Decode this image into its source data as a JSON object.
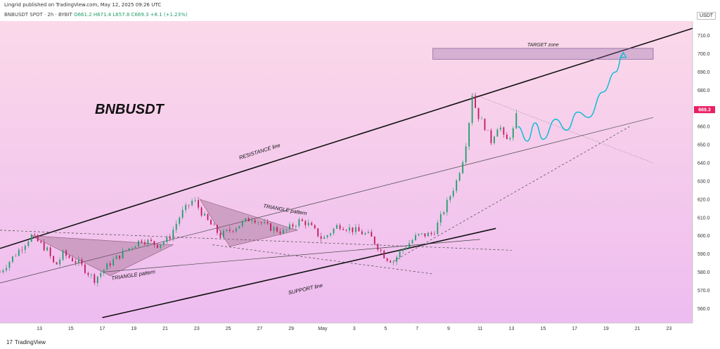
{
  "header": {
    "published": "Lingrid published on TradingView.com, May 12, 2025 09:26 UTC",
    "symbol_line": "BNBUSDT SPOT · 2h · BYBIT",
    "ohlc": "O661.2  H671.4  L657.8  C669.3  +8.1 (+1.23%)"
  },
  "footer": {
    "logo_mark": "17",
    "brand": "TradingView"
  },
  "colors": {
    "up": "#1f9d6a",
    "down": "#c2185b",
    "accent": "#00bcd4",
    "price_tag": "#e91e63"
  },
  "chart_data": {
    "type": "candlestick",
    "title": "BNBUSDT",
    "unit_label": "USDT",
    "last_price": "669.3",
    "y_ticks": [
      560,
      570,
      580,
      590,
      600,
      610,
      620,
      630,
      640,
      650,
      660,
      670,
      680,
      690,
      700,
      710
    ],
    "ylim": [
      552,
      718
    ],
    "x_ticks": [
      "13",
      "15",
      "17",
      "19",
      "21",
      "23",
      "25",
      "27",
      "29",
      "May",
      "3",
      "5",
      "7",
      "9",
      "11",
      "13",
      "15",
      "17",
      "19",
      "21",
      "23"
    ],
    "x_tick_days": [
      -18,
      -16,
      -14,
      -12,
      -10,
      -8,
      -6,
      -4,
      -2,
      0,
      2,
      4,
      6,
      8,
      10,
      12,
      14,
      16,
      18,
      20,
      22
    ],
    "xlim": [
      -20.5,
      23.5
    ],
    "price_path": [
      [
        -20.5,
        580
      ],
      [
        -19.5,
        590
      ],
      [
        -18.5,
        600
      ],
      [
        -17.5,
        592
      ],
      [
        -17,
        583
      ],
      [
        -16.5,
        590
      ],
      [
        -15.5,
        585
      ],
      [
        -14.5,
        576
      ],
      [
        -13.5,
        585
      ],
      [
        -12.5,
        592
      ],
      [
        -11.5,
        598
      ],
      [
        -10.5,
        595
      ],
      [
        -9.8,
        598
      ],
      [
        -9,
        612
      ],
      [
        -8.2,
        620
      ],
      [
        -7.5,
        610
      ],
      [
        -6.5,
        600
      ],
      [
        -5.5,
        605
      ],
      [
        -4.5,
        610
      ],
      [
        -3.5,
        605
      ],
      [
        -2.5,
        602
      ],
      [
        -1.5,
        608
      ],
      [
        -1,
        607
      ],
      [
        0,
        598
      ],
      [
        1,
        606
      ],
      [
        2,
        603
      ],
      [
        3,
        600
      ],
      [
        4,
        588
      ],
      [
        4.5,
        586
      ],
      [
        5,
        592
      ],
      [
        6,
        600
      ],
      [
        7,
        601
      ],
      [
        7.5,
        610
      ],
      [
        8.5,
        630
      ],
      [
        9,
        645
      ],
      [
        9.3,
        663
      ],
      [
        9.5,
        678
      ],
      [
        9.8,
        667
      ],
      [
        10.3,
        660
      ],
      [
        10.7,
        652
      ],
      [
        11.2,
        662
      ],
      [
        11.6,
        651
      ],
      [
        12.1,
        658
      ],
      [
        12.4,
        669.3
      ]
    ],
    "projection": [
      [
        12.4,
        660
      ],
      [
        13,
        652
      ],
      [
        13.5,
        662
      ],
      [
        14,
        653
      ],
      [
        14.8,
        664
      ],
      [
        15.5,
        658
      ],
      [
        16.2,
        668
      ],
      [
        16.9,
        665
      ],
      [
        17.8,
        679
      ],
      [
        18.6,
        690
      ],
      [
        19.1,
        700
      ]
    ],
    "target_zone": {
      "label": "TARGET zone",
      "x": [
        7,
        21
      ],
      "y": [
        697,
        703
      ]
    },
    "triangles": [
      {
        "label": "TRIANGLE pattern",
        "points": [
          [
            -18.5,
            600
          ],
          [
            -13.5,
            578
          ],
          [
            -9.5,
            595
          ]
        ]
      },
      {
        "label": "TRIANGLE pattern",
        "points": [
          [
            -7.8,
            620
          ],
          [
            -5.9,
            594
          ],
          [
            -1.6,
            603
          ]
        ]
      }
    ],
    "lines": [
      {
        "label": "RESISTANCE line",
        "from": [
          -20.5,
          593
        ],
        "to": [
          23.5,
          714
        ],
        "style": "solid-thick"
      },
      {
        "label": "",
        "from": [
          -20.5,
          574
        ],
        "to": [
          21,
          665
        ],
        "style": "solid-thin"
      },
      {
        "label": "",
        "from": [
          -20.5,
          603
        ],
        "to": [
          12,
          592
        ],
        "style": "dashed-thin"
      },
      {
        "label": "SUPPORT line",
        "from": [
          -14,
          555
        ],
        "to": [
          11,
          604
        ],
        "style": "solid-thick"
      },
      {
        "label": "",
        "from": [
          -14,
          580
        ],
        "to": [
          10,
          598
        ],
        "style": "solid-thin"
      },
      {
        "label": "",
        "from": [
          -7,
          595
        ],
        "to": [
          7,
          579
        ],
        "style": "dashed-thin"
      },
      {
        "label": "",
        "from": [
          4.5,
          586
        ],
        "to": [
          19.5,
          660
        ],
        "style": "dashed-thin"
      },
      {
        "label": "",
        "from": [
          9.5,
          678
        ],
        "to": [
          21,
          640
        ],
        "style": "dotted-thin"
      }
    ]
  }
}
